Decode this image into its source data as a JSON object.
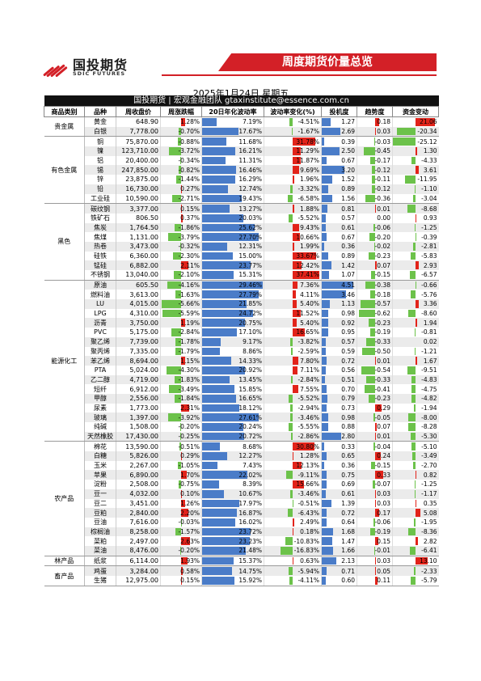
{
  "header": {
    "logo_cn": "国投期货",
    "logo_en": "SDIC FUTURES",
    "banner": "周度期货价量总览"
  },
  "date": "2025年1月24日 星期五",
  "team": "国投期货 | 宏观金融团队 gtaxinstitute@essence.com.cn",
  "colors": {
    "green": "#6cc24a",
    "red": "#e2231a",
    "blue": "#4a7cc8"
  },
  "columns": [
    "商品类别",
    "品种",
    "周收盘价",
    "周涨跌幅",
    "20日年化波动率",
    "波动率变化(%)",
    "投机度",
    "趋势度",
    "资金变动"
  ],
  "categories": [
    {
      "name": "贵金属",
      "rows": [
        {
          "name": "黄金",
          "price": "648.90",
          "chg": "1.28%",
          "vol": "7.19%",
          "volchg": "-4.51%",
          "spec": "1.27",
          "trend": "0.18",
          "fund": "21.06"
        },
        {
          "name": "白银",
          "price": "7,778.00",
          "chg": "-0.70%",
          "vol": "17.67%",
          "volchg": "-1.67%",
          "spec": "2.69",
          "trend": "0.03",
          "fund": "-20.34"
        }
      ]
    },
    {
      "name": "有色金属",
      "rows": [
        {
          "name": "铜",
          "price": "75,870.00",
          "chg": "-0.88%",
          "vol": "11.68%",
          "volchg": "31.78%",
          "spec": "0.39",
          "trend": "-0.03",
          "fund": "-25.12"
        },
        {
          "name": "镍",
          "price": "123,710.00",
          "chg": "-3.72%",
          "vol": "16.21%",
          "volchg": "11.29%",
          "spec": "2.50",
          "trend": "-0.45",
          "fund": "1.30"
        },
        {
          "name": "铝",
          "price": "20,400.00",
          "chg": "-0.34%",
          "vol": "11.31%",
          "volchg": "11.87%",
          "spec": "0.67",
          "trend": "-0.17",
          "fund": "-4.33"
        },
        {
          "name": "锡",
          "price": "247,850.00",
          "chg": "-0.82%",
          "vol": "16.46%",
          "volchg": "9.69%",
          "spec": "3.20",
          "trend": "-0.12",
          "fund": "3.61"
        },
        {
          "name": "锌",
          "price": "23,875.00",
          "chg": "-1.44%",
          "vol": "16.29%",
          "volchg": "1.96%",
          "spec": "1.52",
          "trend": "-0.11",
          "fund": "-11.95"
        },
        {
          "name": "铅",
          "price": "16,730.00",
          "chg": "0.27%",
          "vol": "12.74%",
          "volchg": "-3.32%",
          "spec": "0.89",
          "trend": "-0.12",
          "fund": "-1.10"
        },
        {
          "name": "工业硅",
          "price": "10,590.00",
          "chg": "-2.71%",
          "vol": "19.43%",
          "volchg": "-6.58%",
          "spec": "1.56",
          "trend": "-0.36",
          "fund": "-3.04"
        }
      ]
    },
    {
      "name": "黑色",
      "rows": [
        {
          "name": "碳纹钢",
          "price": "3,377.00",
          "chg": "0.15%",
          "vol": "13.27%",
          "volchg": "1.88%",
          "spec": "0.81",
          "trend": "0.01",
          "fund": "-8.68"
        },
        {
          "name": "铁矿石",
          "price": "806.50",
          "chg": "0.37%",
          "vol": "20.03%",
          "volchg": "-5.52%",
          "spec": "0.57",
          "trend": "0.00",
          "fund": "0.93"
        },
        {
          "name": "焦炭",
          "price": "1,764.50",
          "chg": "-1.86%",
          "vol": "25.62%",
          "volchg": "9.43%",
          "spec": "0.61",
          "trend": "-0.06",
          "fund": "-1.25"
        },
        {
          "name": "焦煤",
          "price": "1,131.00",
          "chg": "-3.79%",
          "vol": "27.70%",
          "volchg": "10.66%",
          "spec": "0.67",
          "trend": "-0.20",
          "fund": "-0.39"
        },
        {
          "name": "热卷",
          "price": "3,473.00",
          "chg": "-0.32%",
          "vol": "12.31%",
          "volchg": "1.99%",
          "spec": "0.36",
          "trend": "-0.02",
          "fund": "-2.81"
        },
        {
          "name": "硅铁",
          "price": "6,360.00",
          "chg": "-2.30%",
          "vol": "15.00%",
          "volchg": "33.67%",
          "spec": "0.89",
          "trend": "-0.23",
          "fund": "-5.83"
        },
        {
          "name": "锰硅",
          "price": "6,882.00",
          "chg": "2.11%",
          "vol": "23.77%",
          "volchg": "12.42%",
          "spec": "1.42",
          "trend": "0.07",
          "fund": "2.93"
        },
        {
          "name": "不锈钢",
          "price": "13,040.00",
          "chg": "-2.10%",
          "vol": "15.31%",
          "volchg": "37.41%",
          "spec": "1.07",
          "trend": "-0.15",
          "fund": "-6.57"
        }
      ]
    },
    {
      "name": "能源化工",
      "rows": [
        {
          "name": "原油",
          "price": "605.50",
          "chg": "-4.16%",
          "vol": "29.46%",
          "volchg": "7.36%",
          "spec": "4.51",
          "trend": "-0.38",
          "fund": "-0.66"
        },
        {
          "name": "燃料油",
          "price": "3,613.00",
          "chg": "-1.63%",
          "vol": "27.79%",
          "volchg": "4.11%",
          "spec": "3.46",
          "trend": "-0.18",
          "fund": "-5.76"
        },
        {
          "name": "LU",
          "price": "4,015.00",
          "chg": "-5.66%",
          "vol": "21.85%",
          "volchg": "5.40%",
          "spec": "1.13",
          "trend": "-0.57",
          "fund": "3.36"
        },
        {
          "name": "LPG",
          "price": "4,310.00",
          "chg": "-5.59%",
          "vol": "24.72%",
          "volchg": "11.52%",
          "spec": "0.98",
          "trend": "-0.62",
          "fund": "-8.60"
        },
        {
          "name": "沥青",
          "price": "3,750.00",
          "chg": "1.19%",
          "vol": "20.75%",
          "volchg": "5.40%",
          "spec": "0.92",
          "trend": "-0.23",
          "fund": "1.94"
        },
        {
          "name": "PVC",
          "price": "5,175.00",
          "chg": "-2.84%",
          "vol": "17.10%",
          "volchg": "16.65%",
          "spec": "0.95",
          "trend": "-0.19",
          "fund": "-0.81"
        },
        {
          "name": "聚乙烯",
          "price": "7,739.00",
          "chg": "-1.78%",
          "vol": "9.17%",
          "volchg": "-3.82%",
          "spec": "0.57",
          "trend": "-0.33",
          "fund": "0.02"
        },
        {
          "name": "聚丙烯",
          "price": "7,335.00",
          "chg": "-1.79%",
          "vol": "8.86%",
          "volchg": "-2.59%",
          "spec": "0.59",
          "trend": "-0.50",
          "fund": "-1.21"
        },
        {
          "name": "苯乙烯",
          "price": "8,694.00",
          "chg": "1.15%",
          "vol": "14.33%",
          "volchg": "7.80%",
          "spec": "0.72",
          "trend": "0.01",
          "fund": "1.67"
        },
        {
          "name": "PTA",
          "price": "5,024.00",
          "chg": "-4.30%",
          "vol": "20.92%",
          "volchg": "7.11%",
          "spec": "0.56",
          "trend": "-0.54",
          "fund": "-9.51"
        },
        {
          "name": "乙二醇",
          "price": "4,719.00",
          "chg": "-1.83%",
          "vol": "13.45%",
          "volchg": "-2.84%",
          "spec": "0.51",
          "trend": "-0.33",
          "fund": "-4.83"
        },
        {
          "name": "短纤",
          "price": "6,912.00",
          "chg": "-3.49%",
          "vol": "15.85%",
          "volchg": "7.55%",
          "spec": "0.70",
          "trend": "-0.41",
          "fund": "-4.75"
        },
        {
          "name": "甲醇",
          "price": "2,556.00",
          "chg": "-1.84%",
          "vol": "16.65%",
          "volchg": "-5.52%",
          "spec": "0.79",
          "trend": "-0.23",
          "fund": "-4.82"
        },
        {
          "name": "尿素",
          "price": "1,773.00",
          "chg": "2.31%",
          "vol": "18.12%",
          "volchg": "-2.94%",
          "spec": "0.73",
          "trend": "0.29",
          "fund": "-1.94"
        },
        {
          "name": "玻璃",
          "price": "1,397.00",
          "chg": "-3.92%",
          "vol": "27.61%",
          "volchg": "-3.46%",
          "spec": "0.98",
          "trend": "-0.05",
          "fund": "-8.00"
        },
        {
          "name": "纯碱",
          "price": "1,508.00",
          "chg": "-0.20%",
          "vol": "20.24%",
          "volchg": "-5.55%",
          "spec": "0.88",
          "trend": "0.07",
          "fund": "-8.28"
        },
        {
          "name": "天然橡胶",
          "price": "17,430.00",
          "chg": "-0.25%",
          "vol": "20.72%",
          "volchg": "-2.86%",
          "spec": "2.80",
          "trend": "0.01",
          "fund": "-5.30"
        }
      ]
    },
    {
      "name": "农产品",
      "rows": [
        {
          "name": "棉花",
          "price": "13,590.00",
          "chg": "-0.51%",
          "vol": "8.68%",
          "volchg": "30.80%",
          "spec": "0.33",
          "trend": "-0.04",
          "fund": "-5.10"
        },
        {
          "name": "白糖",
          "price": "5,826.00",
          "chg": "0.29%",
          "vol": "12.27%",
          "volchg": "1.28%",
          "spec": "0.65",
          "trend": "0.24",
          "fund": "-3.49"
        },
        {
          "name": "玉米",
          "price": "2,267.00",
          "chg": "-1.05%",
          "vol": "7.43%",
          "volchg": "12.13%",
          "spec": "0.36",
          "trend": "-0.15",
          "fund": "-2.70"
        },
        {
          "name": "苹果",
          "price": "6,890.00",
          "chg": "1.70%",
          "vol": "22.02%",
          "volchg": "-9.11%",
          "spec": "0.75",
          "trend": "0.33",
          "fund": "0.82"
        },
        {
          "name": "淀粉",
          "price": "2,508.00",
          "chg": "-0.75%",
          "vol": "8.39%",
          "volchg": "15.66%",
          "spec": "0.69",
          "trend": "-0.07",
          "fund": "-1.25"
        },
        {
          "name": "豆一",
          "price": "4,032.00",
          "chg": "0.10%",
          "vol": "10.67%",
          "volchg": "-3.46%",
          "spec": "0.61",
          "trend": "0.03",
          "fund": "-1.17"
        },
        {
          "name": "豆二",
          "price": "3,451.00",
          "chg": "1.26%",
          "vol": "17.97%",
          "volchg": "-0.51%",
          "spec": "1.39",
          "trend": "0.03",
          "fund": "0.35"
        },
        {
          "name": "豆粕",
          "price": "2,840.00",
          "chg": "2.20%",
          "vol": "16.87%",
          "volchg": "-6.43%",
          "spec": "0.72",
          "trend": "0.17",
          "fund": "5.08"
        },
        {
          "name": "豆油",
          "price": "7,616.00",
          "chg": "-0.03%",
          "vol": "16.02%",
          "volchg": "2.49%",
          "spec": "0.64",
          "trend": "-0.06",
          "fund": "-1.95"
        },
        {
          "name": "棕榈油",
          "price": "8,258.00",
          "chg": "-1.57%",
          "vol": "23.72%",
          "volchg": "0.18%",
          "spec": "1.68",
          "trend": "-0.19",
          "fund": "-8.36"
        },
        {
          "name": "菜粕",
          "price": "2,497.00",
          "chg": "2.63%",
          "vol": "23.23%",
          "volchg": "-10.83%",
          "spec": "1.47",
          "trend": "0.15",
          "fund": "2.82"
        },
        {
          "name": "菜油",
          "price": "8,476.00",
          "chg": "-0.20%",
          "vol": "21.48%",
          "volchg": "-16.83%",
          "spec": "1.66",
          "trend": "-0.01",
          "fund": "-6.41"
        }
      ]
    },
    {
      "name": "林产品",
      "rows": [
        {
          "name": "纸浆",
          "price": "6,114.00",
          "chg": "1.93%",
          "vol": "15.37%",
          "volchg": "0.63%",
          "spec": "2.13",
          "trend": "0.03",
          "fund": "13.10"
        }
      ]
    },
    {
      "name": "畜产品",
      "rows": [
        {
          "name": "鸡蛋",
          "price": "3,284.00",
          "chg": "0.58%",
          "vol": "14.75%",
          "volchg": "-5.94%",
          "spec": "0.71",
          "trend": "0.05",
          "fund": "-2.33"
        },
        {
          "name": "生猪",
          "price": "12,975.00",
          "chg": "0.15%",
          "vol": "15.92%",
          "volchg": "-4.11%",
          "spec": "0.60",
          "trend": "0.11",
          "fund": "-5.79"
        }
      ]
    }
  ]
}
